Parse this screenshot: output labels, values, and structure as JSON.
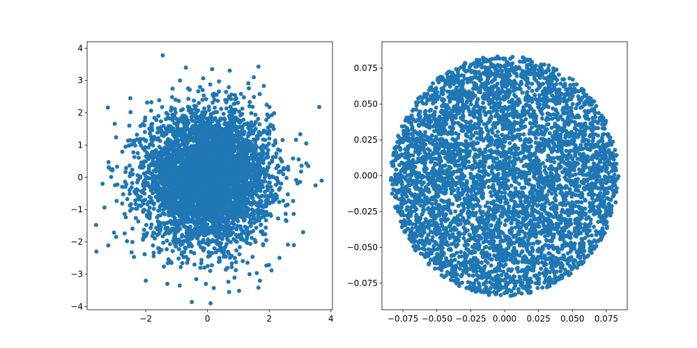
{
  "chart_data": [
    {
      "type": "scatter",
      "title": "",
      "xlabel": "",
      "ylabel": "",
      "xlim": [
        -3.9,
        4.05
      ],
      "ylim": [
        -4.1,
        4.2
      ],
      "xticks": [
        -2,
        0,
        2,
        4
      ],
      "xtick_labels": [
        "−2",
        "0",
        "2",
        "4"
      ],
      "yticks": [
        -4,
        -3,
        -2,
        -1,
        0,
        1,
        2,
        3,
        4
      ],
      "ytick_labels": [
        "−4",
        "−3",
        "−2",
        "−1",
        "0",
        "1",
        "2",
        "3",
        "4"
      ],
      "grid": false,
      "legend": "none",
      "marker_color": "#1f77b4",
      "distribution": "standard normal, mean 0, std 1, about 5000 points",
      "point_count": 5000,
      "outlier_points": [
        {
          "x": -1.45,
          "y": 3.78
        },
        {
          "x": -0.7,
          "y": 3.4
        },
        {
          "x": 0.15,
          "y": 3.35
        },
        {
          "x": -3.6,
          "y": -2.3
        },
        {
          "x": 3.7,
          "y": -0.1
        },
        {
          "x": 0.1,
          "y": -3.9
        },
        {
          "x": 0.7,
          "y": -3.55
        },
        {
          "x": -0.05,
          "y": -3.3
        },
        {
          "x": 1.7,
          "y": -3.2
        },
        {
          "x": -2.0,
          "y": -3.2
        },
        {
          "x": 3.2,
          "y": 1.05
        },
        {
          "x": -3.2,
          "y": 0.3
        },
        {
          "x": 3.1,
          "y": -1.7
        },
        {
          "x": 2.8,
          "y": -2.1
        },
        {
          "x": -1.3,
          "y": -3.3
        },
        {
          "x": -0.9,
          "y": -3.35
        },
        {
          "x": 1.5,
          "y": 3.1
        },
        {
          "x": -2.5,
          "y": 2.45
        },
        {
          "x": -3.4,
          "y": -0.2
        },
        {
          "x": 3.5,
          "y": -0.25
        }
      ]
    },
    {
      "type": "scatter",
      "title": "",
      "xlabel": "",
      "ylabel": "",
      "xlim": [
        -0.0905,
        0.0905
      ],
      "ylim": [
        -0.0935,
        0.0935
      ],
      "xticks": [
        -0.075,
        -0.05,
        -0.025,
        0,
        0.025,
        0.05,
        0.075
      ],
      "xtick_labels": [
        "−0.075",
        "−0.050",
        "−0.025",
        "0.000",
        "0.025",
        "0.050",
        "0.075"
      ],
      "yticks": [
        -0.075,
        -0.05,
        -0.025,
        0,
        0.025,
        0.05,
        0.075
      ],
      "ytick_labels": [
        "−0.075",
        "−0.050",
        "−0.025",
        "0.000",
        "0.025",
        "0.050",
        "0.075"
      ],
      "grid": false,
      "legend": "none",
      "marker_color": "#1f77b4",
      "distribution": "points filling a disc of radius about 0.084 centred at (0, 0)",
      "disc_radius": 0.084,
      "point_count": 5000
    }
  ]
}
